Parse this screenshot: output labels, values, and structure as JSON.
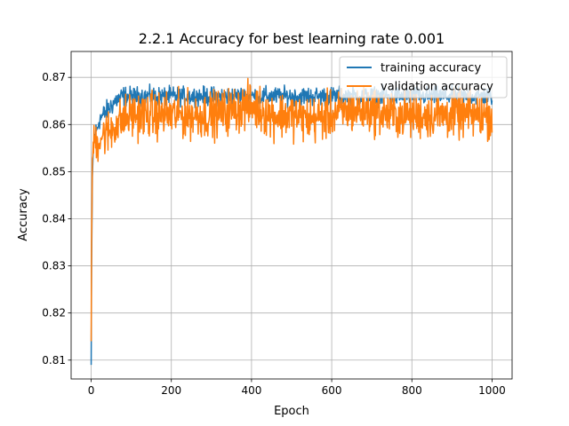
{
  "chart_data": {
    "type": "line",
    "title": "2.2.1 Accuracy for best learning rate 0.001",
    "xlabel": "Epoch",
    "ylabel": "Accuracy",
    "xlim": [
      -50,
      1050
    ],
    "ylim": [
      0.806,
      0.8755
    ],
    "xticks": [
      0,
      200,
      400,
      600,
      800,
      1000
    ],
    "yticks": [
      0.81,
      0.82,
      0.83,
      0.84,
      0.85,
      0.86,
      0.87
    ],
    "ytick_labels": [
      "0.81",
      "0.82",
      "0.83",
      "0.84",
      "0.85",
      "0.86",
      "0.87"
    ],
    "grid": true,
    "legend_position": "top-right",
    "colors": {
      "training": "#1f77b4",
      "validation": "#ff7f0e"
    },
    "series": [
      {
        "name": "training accuracy",
        "x": [
          0,
          1,
          3,
          5,
          10,
          15,
          20,
          30,
          40,
          50,
          60,
          80,
          100,
          125,
          150,
          200,
          250,
          300,
          350,
          400,
          450,
          500,
          550,
          600,
          650,
          700,
          750,
          800,
          850,
          900,
          950,
          1000
        ],
        "values": [
          0.809,
          0.83,
          0.848,
          0.855,
          0.858,
          0.859,
          0.861,
          0.862,
          0.863,
          0.864,
          0.865,
          0.866,
          0.866,
          0.866,
          0.866,
          0.866,
          0.866,
          0.866,
          0.866,
          0.866,
          0.866,
          0.866,
          0.866,
          0.866,
          0.866,
          0.866,
          0.866,
          0.866,
          0.866,
          0.866,
          0.866,
          0.866
        ],
        "amplitude": [
          0,
          0,
          0.002,
          0.002,
          0.002,
          0.002,
          0.002,
          0.002,
          0.002,
          0.002,
          0.002,
          0.002,
          0.0018,
          0.0018,
          0.0018,
          0.0018,
          0.0018,
          0.0018,
          0.0018,
          0.0018,
          0.0018,
          0.0018,
          0.0018,
          0.0018,
          0.0018,
          0.0018,
          0.0018,
          0.0018,
          0.0018,
          0.0018,
          0.0018,
          0.0018
        ]
      },
      {
        "name": "validation accuracy",
        "x": [
          0,
          1,
          3,
          5,
          10,
          15,
          20,
          30,
          40,
          50,
          60,
          80,
          100,
          125,
          150,
          200,
          250,
          300,
          350,
          400,
          450,
          500,
          550,
          600,
          650,
          700,
          750,
          800,
          850,
          900,
          950,
          1000
        ],
        "values": [
          0.814,
          0.835,
          0.852,
          0.855,
          0.857,
          0.856,
          0.857,
          0.858,
          0.858,
          0.859,
          0.86,
          0.861,
          0.862,
          0.862,
          0.862,
          0.862,
          0.862,
          0.862,
          0.863,
          0.864,
          0.862,
          0.862,
          0.861,
          0.862,
          0.863,
          0.863,
          0.862,
          0.862,
          0.862,
          0.862,
          0.862,
          0.862
        ],
        "amplitude": [
          0,
          0,
          0.004,
          0.004,
          0.004,
          0.004,
          0.004,
          0.004,
          0.0045,
          0.0045,
          0.0045,
          0.0045,
          0.0045,
          0.0045,
          0.0045,
          0.0045,
          0.0045,
          0.0045,
          0.0045,
          0.0045,
          0.0045,
          0.0045,
          0.0045,
          0.0045,
          0.0045,
          0.0045,
          0.0045,
          0.0045,
          0.0045,
          0.0045,
          0.0045,
          0.0045
        ]
      }
    ]
  }
}
